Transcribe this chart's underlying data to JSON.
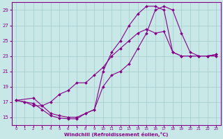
{
  "background_color": "#c8e8e8",
  "grid_color": "#a8d0d0",
  "line_color": "#880088",
  "marker_color": "#880088",
  "xlabel": "Windchill (Refroidissement éolien,°C)",
  "xlim": [
    -0.5,
    23.5
  ],
  "ylim": [
    14,
    30
  ],
  "yticks": [
    15,
    17,
    19,
    21,
    23,
    25,
    27,
    29
  ],
  "xticks": [
    0,
    1,
    2,
    3,
    4,
    5,
    6,
    7,
    8,
    9,
    10,
    11,
    12,
    13,
    14,
    15,
    16,
    17,
    18,
    19,
    20,
    21,
    22,
    23
  ],
  "series1_x": [
    0,
    1,
    2,
    3,
    4,
    5,
    6,
    7,
    8,
    9,
    10,
    11,
    12,
    13,
    14,
    15,
    16,
    17,
    18,
    19,
    20,
    21,
    22,
    23
  ],
  "series1_y": [
    17.2,
    17.0,
    16.5,
    16.5,
    15.5,
    15.2,
    15.0,
    15.0,
    15.5,
    16.0,
    21.0,
    23.5,
    25.0,
    27.0,
    28.5,
    29.5,
    29.5,
    29.0,
    23.5,
    23.0,
    23.0,
    23.0,
    23.0,
    23.0
  ],
  "series2_x": [
    0,
    2,
    3,
    4,
    5,
    6,
    7,
    8,
    9,
    10,
    11,
    12,
    13,
    14,
    15,
    16,
    17,
    18,
    19,
    20,
    21,
    22,
    23
  ],
  "series2_y": [
    17.2,
    17.5,
    16.5,
    17.0,
    18.0,
    18.5,
    19.5,
    19.5,
    20.5,
    21.5,
    23.0,
    24.0,
    25.0,
    26.0,
    26.5,
    26.0,
    26.2,
    23.5,
    23.0,
    23.0,
    23.0,
    23.0,
    23.2
  ],
  "series3_x": [
    0,
    1,
    2,
    3,
    4,
    5,
    6,
    7,
    8,
    9,
    10,
    11,
    12,
    13,
    14,
    15,
    16,
    17,
    18,
    19,
    20,
    21,
    22,
    23
  ],
  "series3_y": [
    17.2,
    17.0,
    16.8,
    16.0,
    15.2,
    14.9,
    14.8,
    14.8,
    15.5,
    16.0,
    19.0,
    20.5,
    21.0,
    22.0,
    24.0,
    26.0,
    29.0,
    29.5,
    29.0,
    26.0,
    23.5,
    23.0,
    23.0,
    23.2
  ]
}
